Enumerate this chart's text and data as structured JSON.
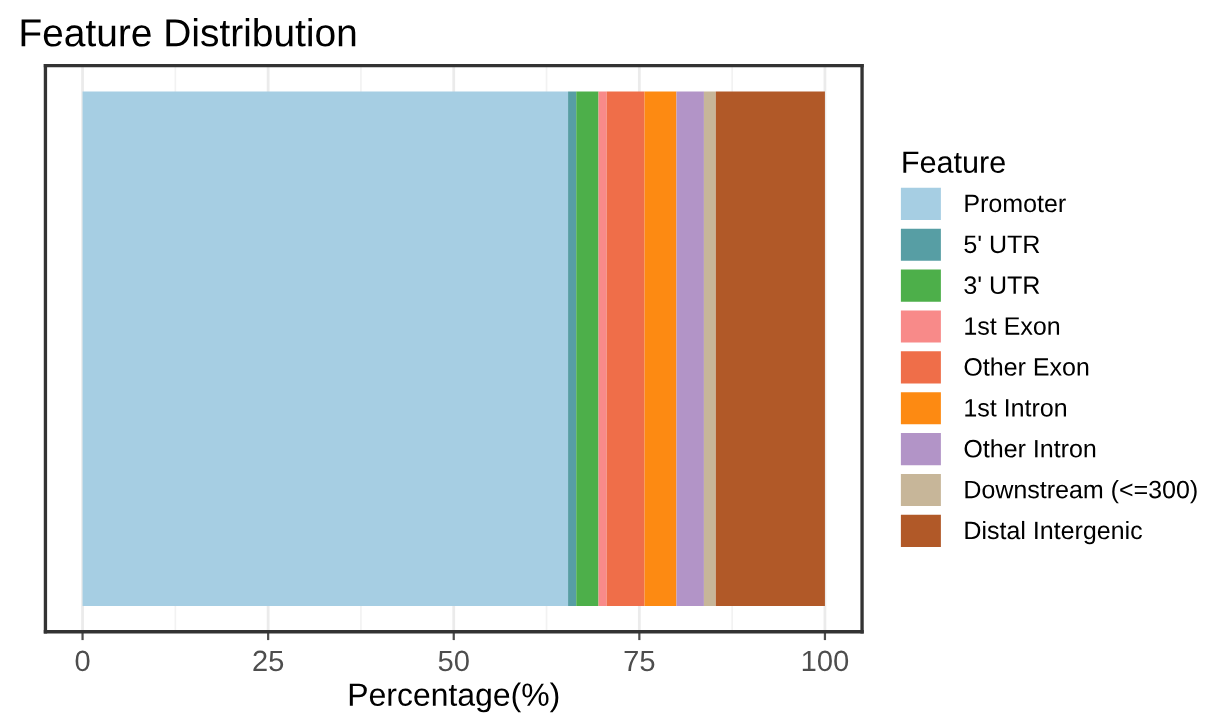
{
  "chart_data": {
    "type": "bar",
    "title": "Feature Distribution",
    "xlabel": "Percentage(%)",
    "legend_title": "Feature",
    "orientation": "horizontal",
    "stacked": true,
    "categories": [
      null
    ],
    "series": [
      {
        "name": "Promoter",
        "color": "#a6cee3",
        "values": [
          65.4
        ]
      },
      {
        "name": "5' UTR",
        "color": "#579ea4",
        "values": [
          1.1
        ]
      },
      {
        "name": "3' UTR",
        "color": "#4daf4a",
        "values": [
          3.0
        ]
      },
      {
        "name": "1st Exon",
        "color": "#f88a89",
        "values": [
          1.1
        ]
      },
      {
        "name": "Other Exon",
        "color": "#ef6e49",
        "values": [
          5.1
        ]
      },
      {
        "name": "1st Intron",
        "color": "#fd8a12",
        "values": [
          4.3
        ]
      },
      {
        "name": "Other Intron",
        "color": "#b294c7",
        "values": [
          3.7
        ]
      },
      {
        "name": "Downstream (<=300)",
        "color": "#c7b699",
        "values": [
          1.6
        ]
      },
      {
        "name": "Distal Intergenic",
        "color": "#b15928",
        "values": [
          14.7
        ]
      }
    ],
    "xlim": [
      -5,
      105
    ],
    "xticks": [
      0,
      25,
      50,
      75,
      100
    ],
    "grid": "x",
    "legend": "right"
  }
}
